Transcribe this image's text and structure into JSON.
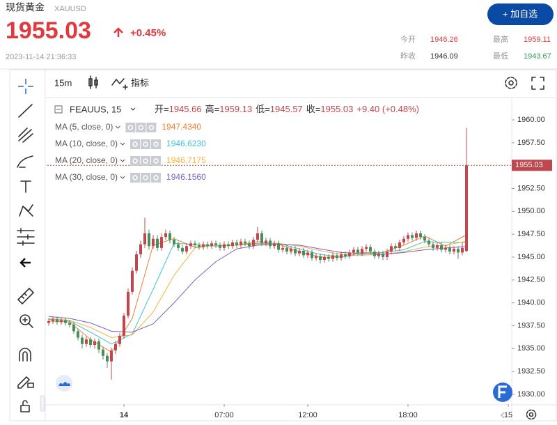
{
  "header": {
    "name": "现货黄金",
    "code": "XAUUSD",
    "price": "1955.03",
    "change": "+0.45%",
    "time": "2023-11-14 21:36:33",
    "button": "+ 加自选",
    "stats": [
      {
        "label": "今开",
        "value": "1946.26"
      },
      {
        "label": "最高",
        "value": "1959.11"
      },
      {
        "label": "昨收",
        "value": "1946.09"
      },
      {
        "label": "最低",
        "value": "1943.67"
      }
    ]
  },
  "toolbar": {
    "interval": "15m",
    "indicators": "指标"
  },
  "legend": {
    "symbol": "FEAUUS, 15",
    "ohlc": [
      {
        "label": "开=",
        "value": "1945.66"
      },
      {
        "label": "高=",
        "value": "1959.13"
      },
      {
        "label": "低=",
        "value": "1945.57"
      },
      {
        "label": "收=",
        "value": "1955.03"
      }
    ],
    "change": "+9.40 (+0.48%)"
  },
  "chart_data": {
    "type": "candlestick",
    "up_color": "#c0474d",
    "down_color": "#4a8d5b",
    "open": [
      1937.8,
      1938.0,
      1938.2,
      1937.9,
      1938.1,
      1937.8,
      1937.6,
      1936.9,
      1936.2,
      1935.5,
      1936.0,
      1935.4,
      1935.8,
      1934.9,
      1934.2,
      1933.6,
      1934.8,
      1935.5,
      1936.4,
      1938.6,
      1941.2,
      1943.5,
      1945.3,
      1946.4,
      1947.6,
      1946.2,
      1947.0,
      1946.0,
      1947.2,
      1947.6,
      1946.9,
      1946.4,
      1946.0,
      1945.6,
      1946.2,
      1946.5,
      1946.3,
      1946.1,
      1946.4,
      1946.2,
      1946.5,
      1946.3,
      1946.0,
      1946.4,
      1946.2,
      1946.6,
      1946.3,
      1946.7,
      1946.5,
      1946.2,
      1946.9,
      1947.6,
      1946.5,
      1946.8,
      1946.2,
      1946.5,
      1945.8,
      1946.0,
      1945.6,
      1945.9,
      1945.4,
      1945.7,
      1945.2,
      1945.5,
      1944.9,
      1945.1,
      1944.7,
      1945.0,
      1944.8,
      1945.2,
      1944.9,
      1945.3,
      1945.1,
      1945.5,
      1945.8,
      1945.4,
      1945.9,
      1946.1,
      1945.6,
      1945.1,
      1945.4,
      1945.0,
      1945.6,
      1946.2,
      1946.0,
      1946.6,
      1947.0,
      1947.4,
      1947.1,
      1947.6,
      1947.2,
      1946.8,
      1946.4,
      1946.0,
      1946.3,
      1945.8,
      1946.0,
      1945.6,
      1945.9,
      1945.5,
      1945.66
    ],
    "high": [
      1938.3,
      1938.5,
      1938.5,
      1938.4,
      1938.4,
      1938.1,
      1937.9,
      1937.2,
      1936.5,
      1936.3,
      1936.3,
      1936.1,
      1936.1,
      1935.2,
      1934.5,
      1935.1,
      1935.8,
      1936.7,
      1938.9,
      1941.6,
      1943.9,
      1945.7,
      1946.8,
      1949.3,
      1948.0,
      1947.4,
      1947.4,
      1947.6,
      1948.0,
      1947.9,
      1947.2,
      1946.7,
      1946.3,
      1946.5,
      1946.8,
      1946.8,
      1946.6,
      1946.7,
      1946.7,
      1946.8,
      1946.8,
      1946.6,
      1946.7,
      1946.7,
      1946.9,
      1946.9,
      1947.0,
      1947.0,
      1946.8,
      1947.2,
      1948.3,
      1947.9,
      1947.1,
      1947.1,
      1946.8,
      1946.8,
      1946.3,
      1946.3,
      1946.2,
      1946.2,
      1946.0,
      1946.0,
      1945.8,
      1945.8,
      1945.4,
      1945.4,
      1945.3,
      1945.3,
      1945.5,
      1945.5,
      1945.6,
      1945.6,
      1945.8,
      1946.1,
      1946.1,
      1946.2,
      1946.4,
      1946.4,
      1945.9,
      1945.7,
      1945.7,
      1945.9,
      1946.5,
      1946.5,
      1946.9,
      1947.3,
      1947.7,
      1947.7,
      1947.9,
      1947.9,
      1947.5,
      1947.1,
      1946.7,
      1946.6,
      1946.6,
      1946.3,
      1946.3,
      1946.2,
      1946.2,
      1946.6,
      1959.13
    ],
    "low": [
      1937.5,
      1937.7,
      1937.6,
      1937.6,
      1937.5,
      1937.3,
      1936.6,
      1935.9,
      1935.0,
      1935.2,
      1935.1,
      1935.0,
      1934.5,
      1933.8,
      1932.9,
      1931.6,
      1934.4,
      1935.2,
      1936.1,
      1938.3,
      1940.9,
      1943.2,
      1944.9,
      1946.0,
      1945.8,
      1945.9,
      1945.7,
      1945.7,
      1946.9,
      1946.5,
      1946.1,
      1945.7,
      1945.3,
      1945.3,
      1945.9,
      1946.0,
      1945.8,
      1945.8,
      1945.9,
      1945.9,
      1946.0,
      1945.7,
      1945.7,
      1945.9,
      1945.9,
      1946.0,
      1946.0,
      1946.2,
      1945.9,
      1945.9,
      1946.6,
      1946.2,
      1946.2,
      1945.9,
      1945.9,
      1945.5,
      1945.5,
      1945.3,
      1945.3,
      1945.1,
      1945.1,
      1944.9,
      1944.9,
      1944.6,
      1944.6,
      1944.3,
      1944.4,
      1944.5,
      1944.5,
      1944.6,
      1944.6,
      1944.8,
      1944.8,
      1945.2,
      1945.1,
      1945.1,
      1945.6,
      1945.3,
      1944.8,
      1944.8,
      1944.7,
      1944.7,
      1945.3,
      1945.7,
      1945.7,
      1946.3,
      1946.7,
      1946.8,
      1946.8,
      1946.9,
      1946.5,
      1946.1,
      1945.7,
      1945.7,
      1945.5,
      1945.5,
      1945.3,
      1945.3,
      1944.8,
      1945.2,
      1945.57
    ],
    "close": [
      1938.0,
      1938.2,
      1937.9,
      1938.1,
      1937.8,
      1937.6,
      1936.9,
      1936.2,
      1935.5,
      1936.0,
      1935.4,
      1935.8,
      1934.9,
      1934.2,
      1933.6,
      1934.8,
      1935.5,
      1936.4,
      1938.6,
      1941.2,
      1943.5,
      1945.3,
      1946.4,
      1947.6,
      1946.2,
      1947.0,
      1946.0,
      1947.2,
      1947.6,
      1946.9,
      1946.4,
      1946.0,
      1945.6,
      1946.2,
      1946.5,
      1946.3,
      1946.1,
      1946.4,
      1946.2,
      1946.5,
      1946.3,
      1946.0,
      1946.4,
      1946.2,
      1946.6,
      1946.3,
      1946.7,
      1946.5,
      1946.2,
      1946.9,
      1947.6,
      1946.5,
      1946.8,
      1946.2,
      1946.5,
      1945.8,
      1946.0,
      1945.6,
      1945.9,
      1945.4,
      1945.7,
      1945.2,
      1945.5,
      1944.9,
      1945.1,
      1944.7,
      1945.0,
      1944.8,
      1945.2,
      1944.9,
      1945.3,
      1945.1,
      1945.5,
      1945.8,
      1945.4,
      1945.9,
      1946.1,
      1945.6,
      1945.1,
      1945.4,
      1945.0,
      1945.6,
      1946.2,
      1946.0,
      1946.6,
      1947.0,
      1947.4,
      1947.1,
      1947.6,
      1947.2,
      1946.8,
      1946.4,
      1946.0,
      1946.3,
      1945.8,
      1946.0,
      1945.6,
      1945.9,
      1945.5,
      1946.0,
      1955.03
    ],
    "ma": [
      {
        "name": "MA (5, close, 0)",
        "color": "#f07f2e",
        "current": "1947.4340",
        "x": [
          0,
          5,
          10,
          15,
          20,
          25,
          30,
          35,
          40,
          45,
          50,
          55,
          60,
          65,
          70,
          75,
          80,
          85,
          90,
          95,
          100
        ],
        "values": [
          1938.0,
          1937.9,
          1936.0,
          1934.6,
          1938.3,
          1946.3,
          1947.0,
          1946.1,
          1946.3,
          1946.3,
          1946.7,
          1946.4,
          1945.6,
          1945.0,
          1945.0,
          1945.5,
          1945.5,
          1946.3,
          1947.3,
          1946.2,
          1947.434
        ]
      },
      {
        "name": "MA (10, close, 0)",
        "color": "#3cc3d9",
        "current": "1946.6230",
        "x": [
          0,
          5,
          10,
          15,
          20,
          25,
          30,
          35,
          40,
          45,
          50,
          55,
          60,
          65,
          70,
          75,
          80,
          85,
          90,
          95,
          100
        ],
        "values": [
          1938.2,
          1938.0,
          1936.8,
          1935.5,
          1936.6,
          1941.5,
          1946.5,
          1946.4,
          1946.2,
          1946.3,
          1946.5,
          1946.5,
          1945.9,
          1945.3,
          1945.0,
          1945.3,
          1945.5,
          1945.8,
          1946.7,
          1946.6,
          1946.623
        ]
      },
      {
        "name": "MA (20, close, 0)",
        "color": "#f2b53c",
        "current": "1946.7175",
        "x": [
          0,
          5,
          10,
          15,
          20,
          25,
          30,
          35,
          40,
          45,
          50,
          55,
          60,
          65,
          70,
          75,
          80,
          85,
          90,
          95,
          100
        ],
        "values": [
          1938.3,
          1938.1,
          1937.3,
          1936.2,
          1936.5,
          1939.0,
          1943.0,
          1946.0,
          1946.3,
          1946.3,
          1946.4,
          1946.5,
          1946.2,
          1945.7,
          1945.3,
          1945.2,
          1945.3,
          1945.6,
          1946.1,
          1946.3,
          1946.7175
        ]
      },
      {
        "name": "MA (30, close, 0)",
        "color": "#7b5fc1",
        "current": "1946.1560",
        "x": [
          0,
          5,
          10,
          15,
          20,
          25,
          30,
          35,
          40,
          45,
          50,
          55,
          60,
          65,
          70,
          75,
          80,
          85,
          90,
          95,
          100
        ],
        "values": [
          1938.5,
          1938.3,
          1937.8,
          1936.9,
          1936.8,
          1937.7,
          1940.0,
          1942.5,
          1944.5,
          1945.9,
          1946.3,
          1946.4,
          1946.3,
          1945.9,
          1945.5,
          1945.4,
          1945.3,
          1945.5,
          1945.8,
          1946.0,
          1946.156
        ]
      }
    ],
    "last_price": {
      "value": 1955.03,
      "label": "1955.03"
    },
    "xlim": [
      -0.333,
      110.833
    ],
    "xticks": [
      {
        "value": 18,
        "label": "14"
      },
      {
        "value": 42,
        "label": "07:00"
      },
      {
        "value": 62,
        "label": "12:00"
      },
      {
        "value": 86,
        "label": "18:00"
      },
      {
        "value": 110,
        "label": "15"
      }
    ],
    "ylim": [
      1928.93,
      1962.44
    ],
    "yticks": [
      {
        "value": 1930,
        "label": "1930.00"
      },
      {
        "value": 1932.5,
        "label": "1932.50"
      },
      {
        "value": 1935,
        "label": "1935.00"
      },
      {
        "value": 1937.5,
        "label": "1937.50"
      },
      {
        "value": 1940,
        "label": "1940.00"
      },
      {
        "value": 1942.5,
        "label": "1942.50"
      },
      {
        "value": 1945,
        "label": "1945.00"
      },
      {
        "value": 1947.5,
        "label": "1947.50"
      },
      {
        "value": 1950,
        "label": "1950.00"
      },
      {
        "value": 1952.5,
        "label": "1952.50"
      },
      {
        "value": 1955,
        "label": "1955.00"
      },
      {
        "value": 1957.5,
        "label": "1957.50"
      },
      {
        "value": 1960,
        "label": "1960.00"
      }
    ]
  }
}
